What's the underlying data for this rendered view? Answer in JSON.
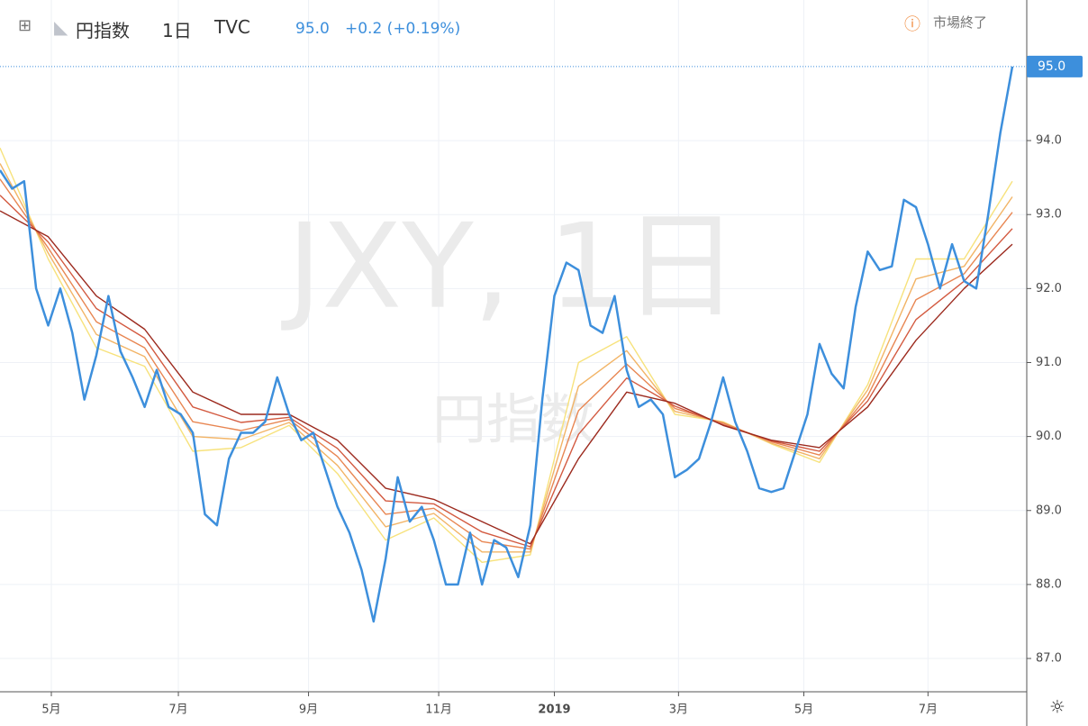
{
  "header": {
    "symbol": "円指数",
    "interval": "1日",
    "source": "TVC",
    "price": "95.0",
    "change": "+0.2 (+0.19%)",
    "status": "市場終了"
  },
  "watermark": {
    "line1": "JXY, 1日",
    "line2": "円指数"
  },
  "chart_data": {
    "type": "line",
    "xlim": [
      0,
      84
    ],
    "xticks": [
      {
        "value": 4.26,
        "label": "5月"
      },
      {
        "value": 14.8,
        "label": "7月"
      },
      {
        "value": 25.6,
        "label": "9月"
      },
      {
        "value": 36.4,
        "label": "11月"
      },
      {
        "value": 46.0,
        "label": "2019"
      },
      {
        "value": 56.3,
        "label": "3月"
      },
      {
        "value": 66.7,
        "label": "5月"
      },
      {
        "value": 77.0,
        "label": "7月"
      }
    ],
    "ylim": [
      86.55,
      95.9
    ],
    "yticks": [
      {
        "value": 87,
        "label": "87.0"
      },
      {
        "value": 88,
        "label": "88.0"
      },
      {
        "value": 89,
        "label": "89.0"
      },
      {
        "value": 90,
        "label": "90.0"
      },
      {
        "value": 91,
        "label": "91.0"
      },
      {
        "value": 92,
        "label": "92.0"
      },
      {
        "value": 93,
        "label": "93.0"
      },
      {
        "value": 94,
        "label": "94.0"
      }
    ],
    "grid": true,
    "series": [
      {
        "color": "#f7e27c",
        "values": [
          93.9,
          92.4,
          91.2,
          90.95,
          89.8,
          89.85,
          90.15,
          89.5,
          88.6,
          88.9,
          88.3,
          88.4,
          91.0,
          91.35,
          90.3,
          90.2,
          89.9,
          89.65,
          90.7,
          92.4,
          92.4,
          93.45
        ]
      },
      {
        "color": "#f2b466",
        "values": [
          93.69,
          92.48,
          91.38,
          91.08,
          90.0,
          89.96,
          90.19,
          89.61,
          88.78,
          88.96,
          88.44,
          88.44,
          90.68,
          91.16,
          90.34,
          90.19,
          89.91,
          89.7,
          90.63,
          92.13,
          92.3,
          93.24
        ]
      },
      {
        "color": "#e88652",
        "values": [
          93.48,
          92.55,
          91.55,
          91.2,
          90.2,
          90.08,
          90.23,
          89.73,
          88.95,
          89.03,
          88.58,
          88.48,
          90.35,
          90.98,
          90.38,
          90.18,
          89.93,
          89.75,
          90.55,
          91.85,
          92.2,
          93.03
        ]
      },
      {
        "color": "#d35a40",
        "values": [
          93.26,
          92.63,
          91.73,
          91.33,
          90.4,
          90.19,
          90.26,
          89.84,
          89.13,
          89.09,
          88.71,
          88.51,
          90.03,
          90.79,
          90.41,
          90.16,
          89.94,
          89.8,
          90.48,
          91.58,
          92.1,
          92.81
        ]
      },
      {
        "color": "#9c2a1e",
        "values": [
          93.05,
          92.7,
          91.9,
          91.45,
          90.6,
          90.3,
          90.3,
          89.95,
          89.3,
          89.15,
          88.85,
          88.55,
          89.7,
          90.6,
          90.45,
          90.15,
          89.95,
          89.85,
          90.4,
          91.3,
          92.0,
          92.6
        ]
      },
      {
        "color": "#3d8fdc",
        "values": [
          93.6,
          93.35,
          93.45,
          92.0,
          91.5,
          92.0,
          91.4,
          90.5,
          91.1,
          91.9,
          91.15,
          90.8,
          90.4,
          90.9,
          90.4,
          90.3,
          90.05,
          88.95,
          88.8,
          89.7,
          90.05,
          90.05,
          90.2,
          90.8,
          90.3,
          89.95,
          90.05,
          89.55,
          89.05,
          88.7,
          88.2,
          87.5,
          88.35,
          89.45,
          88.85,
          89.05,
          88.6,
          88.0,
          88.0,
          88.7,
          88.0,
          88.6,
          88.5,
          88.1,
          88.8,
          90.5,
          91.9,
          92.35,
          92.25,
          91.5,
          91.4,
          91.9,
          90.9,
          90.4,
          90.5,
          90.3,
          89.45,
          89.55,
          89.7,
          90.2,
          90.8,
          90.2,
          89.8,
          89.3,
          89.25,
          89.3,
          89.8,
          90.3,
          91.25,
          90.85,
          90.65,
          91.75,
          92.5,
          92.25,
          92.3,
          93.2,
          93.1,
          92.6,
          92.0,
          92.6,
          92.1,
          92.0,
          93.0,
          94.1,
          95.0
        ]
      }
    ]
  }
}
